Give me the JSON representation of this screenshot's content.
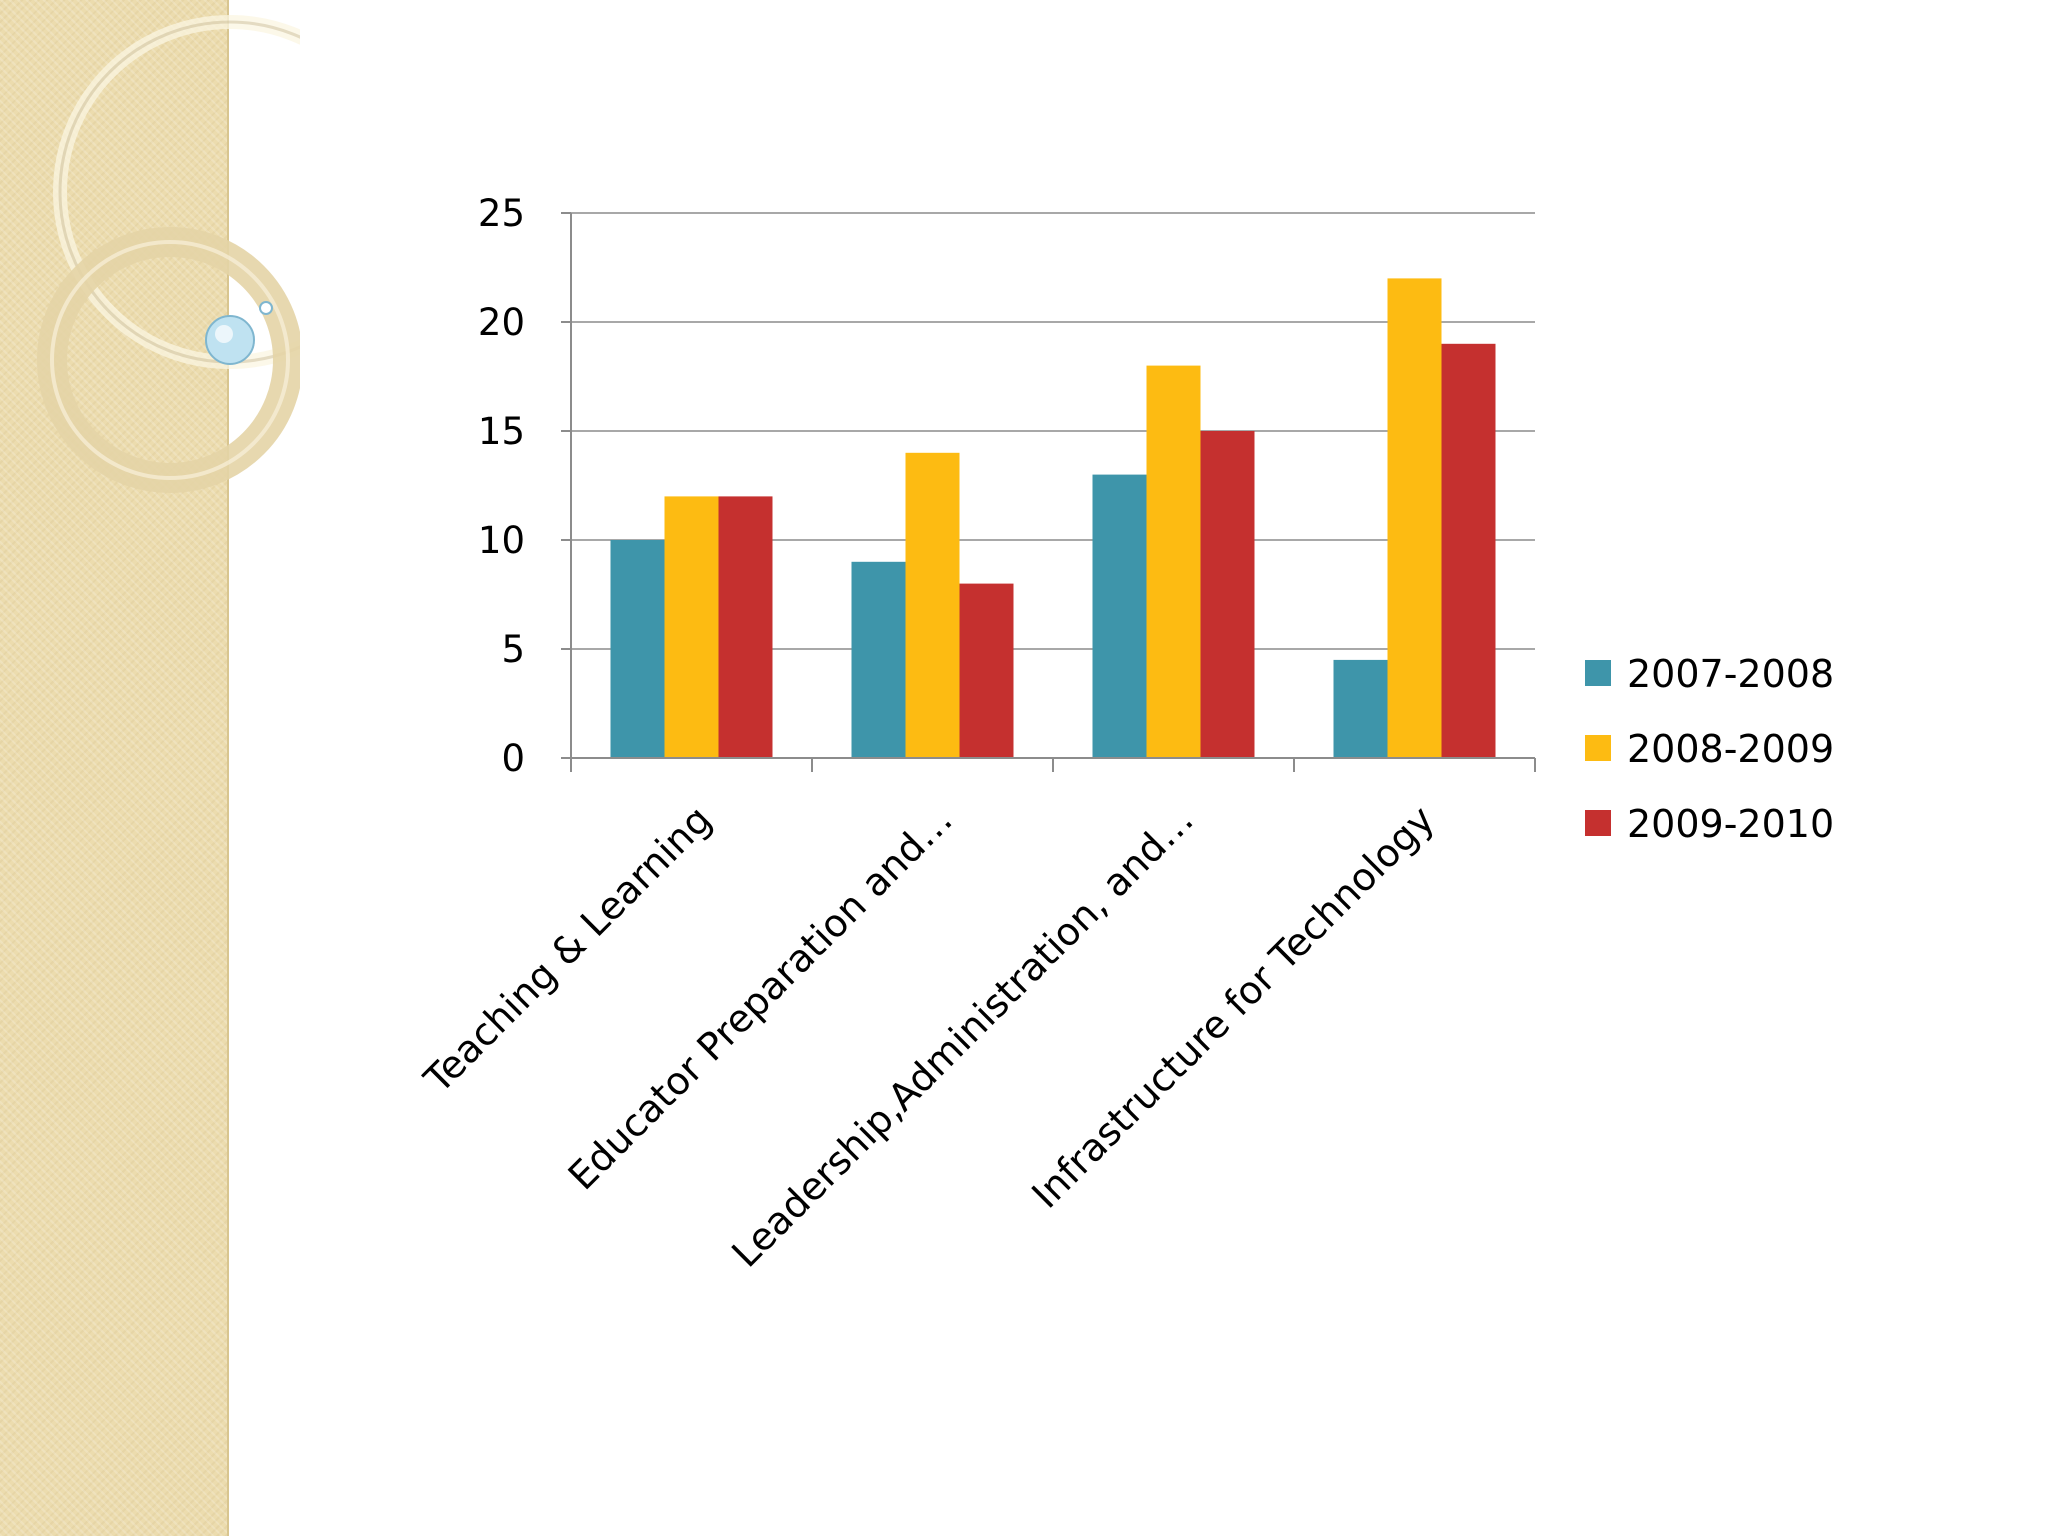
{
  "slide": {
    "background": "#ffffff",
    "panel_color": "#ecdcae"
  },
  "chart_data": {
    "type": "bar",
    "title": "",
    "xlabel": "",
    "ylabel": "",
    "ylim": [
      0,
      25
    ],
    "yticks": [
      0,
      5,
      10,
      15,
      20,
      25
    ],
    "grid": true,
    "legend_position": "right",
    "categories": [
      "Teaching & Learning",
      "Educator Preparation and…",
      "Leadership,Administration, and…",
      "Infrastructure for Technology"
    ],
    "series": [
      {
        "name": "2007-2008",
        "color": "#3e95aa",
        "values": [
          10,
          9,
          13,
          4.5
        ]
      },
      {
        "name": "2008-2009",
        "color": "#fdbb12",
        "values": [
          12,
          14,
          18,
          22
        ]
      },
      {
        "name": "2009-2010",
        "color": "#c5302f",
        "values": [
          12,
          8,
          15,
          19
        ]
      }
    ]
  }
}
